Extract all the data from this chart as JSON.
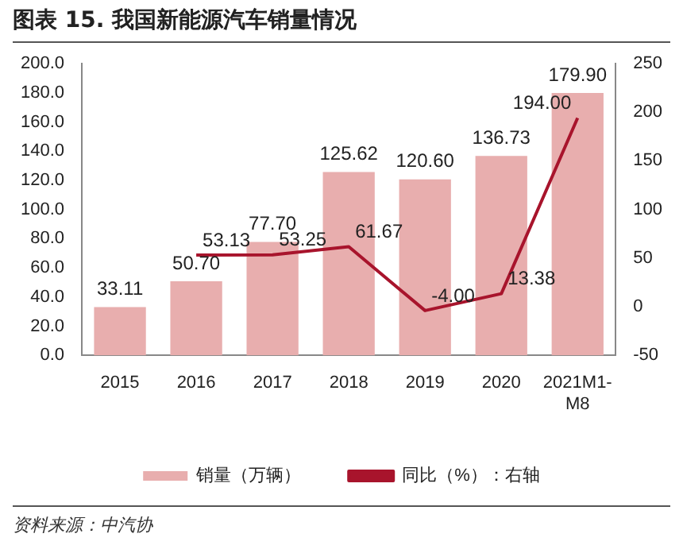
{
  "chart_data": {
    "type": "bar",
    "title": "图表 15. 我国新能源汽车销量情况",
    "categories": [
      "2015",
      "2016",
      "2017",
      "2018",
      "2019",
      "2020",
      "2021M1-M8"
    ],
    "series": [
      {
        "name": "销量（万辆）",
        "color": "#e8aeae",
        "values": [
          33.11,
          50.7,
          77.7,
          125.62,
          120.6,
          136.73,
          179.9
        ],
        "value_labels": [
          "33.11",
          "50.70",
          "77.70",
          "125.62",
          "120.60",
          "136.73",
          "179.90"
        ]
      },
      {
        "name": "同比（%）：右轴",
        "type": "line",
        "axis": "y2",
        "color": "#a8142c",
        "values": [
          null,
          53.13,
          53.25,
          61.67,
          -4.0,
          13.38,
          194.0
        ],
        "value_labels": [
          null,
          "53.13",
          "53.25",
          "61.67",
          "-4.00",
          "13.38",
          "194.00"
        ]
      }
    ],
    "ylim": [
      0,
      200
    ],
    "yticks": [
      {
        "value": 0,
        "label": "0.0"
      },
      {
        "value": 20,
        "label": "20.0"
      },
      {
        "value": 40,
        "label": "40.0"
      },
      {
        "value": 60,
        "label": "60.0"
      },
      {
        "value": 80,
        "label": "80.0"
      },
      {
        "value": 100,
        "label": "100.0"
      },
      {
        "value": 120,
        "label": "120.0"
      },
      {
        "value": 140,
        "label": "140.0"
      },
      {
        "value": 160,
        "label": "160.0"
      },
      {
        "value": 180,
        "label": "180.0"
      },
      {
        "value": 200,
        "label": "200.0"
      }
    ],
    "y2lim": [
      -50,
      250
    ],
    "y2ticks": [
      -50,
      0,
      50,
      100,
      150,
      200,
      250
    ],
    "grid": false,
    "legend": "bottom",
    "marker": "none",
    "line_style": "solid",
    "annotations": [
      "资料来源：中汽协"
    ]
  }
}
